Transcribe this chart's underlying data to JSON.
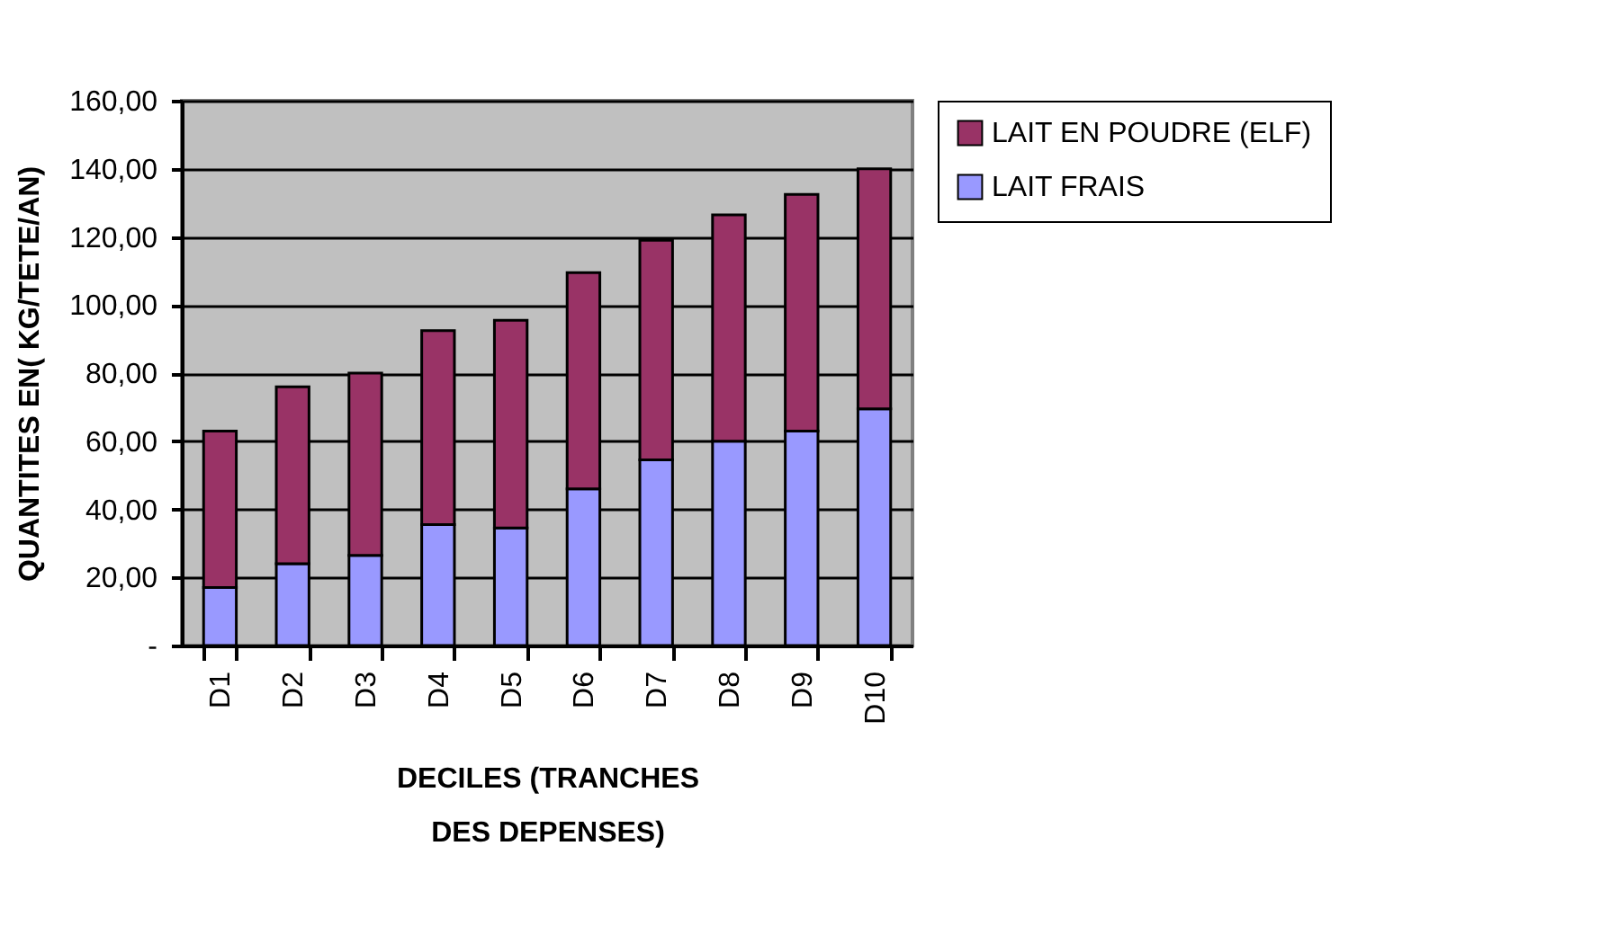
{
  "chart_data": {
    "type": "bar",
    "stacked": true,
    "xlabel": "DECILES (TRANCHES DES DEPENSES)",
    "ylabel": "QUANTITES EN( KG/TETE/AN)",
    "categories": [
      "D1",
      "D2",
      "D3",
      "D4",
      "D5",
      "D6",
      "D7",
      "D8",
      "D9",
      "D10"
    ],
    "series": [
      {
        "name": "LAIT FRAIS",
        "color": "#9999ff",
        "values": [
          17,
          24,
          26.5,
          35.5,
          34.5,
          46,
          54.5,
          60,
          63,
          69.5
        ]
      },
      {
        "name": "LAIT EN POUDRE (ELF)",
        "color": "#993366",
        "values": [
          46,
          52,
          53.5,
          57,
          61,
          63.5,
          64.5,
          66.5,
          69.5,
          70.5
        ]
      }
    ],
    "ylim": [
      0,
      160
    ],
    "yticks": [
      {
        "value": 0,
        "label": "-"
      },
      {
        "value": 20,
        "label": "20,00"
      },
      {
        "value": 40,
        "label": "40,00"
      },
      {
        "value": 60,
        "label": "60,00"
      },
      {
        "value": 80,
        "label": "80,00"
      },
      {
        "value": 100,
        "label": "100,00"
      },
      {
        "value": 120,
        "label": "120,00"
      },
      {
        "value": 140,
        "label": "140,00"
      },
      {
        "value": 160,
        "label": "160,00"
      }
    ],
    "grid": "y",
    "legend": "right"
  }
}
